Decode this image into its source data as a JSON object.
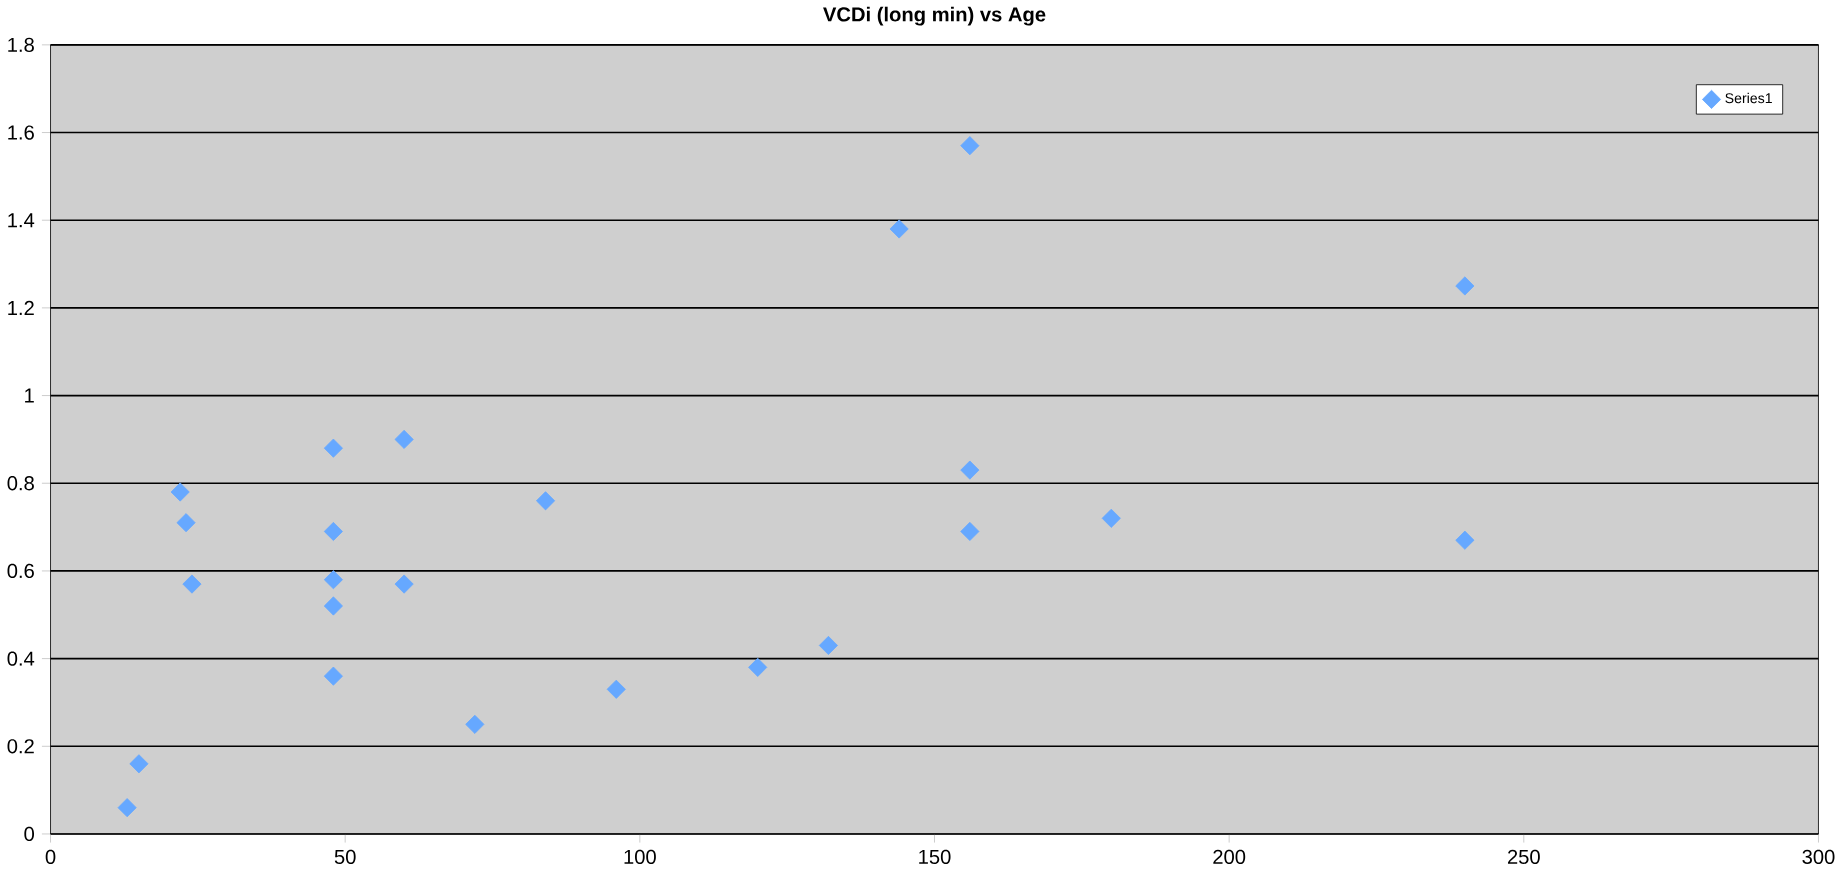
{
  "chart_data": {
    "type": "scatter",
    "title": "VCDi (long min) vs Age",
    "x": [
      13,
      15,
      22,
      23,
      24,
      48,
      48,
      48,
      48,
      48,
      60,
      60,
      72,
      84,
      96,
      120,
      132,
      144,
      156,
      156,
      156,
      180,
      240,
      240
    ],
    "series": [
      {
        "name": "Series1",
        "color": "#66a8ff",
        "values": [
          0.06,
          0.16,
          0.78,
          0.71,
          0.57,
          0.88,
          0.69,
          0.58,
          0.52,
          0.36,
          0.9,
          0.57,
          0.25,
          0.76,
          0.33,
          0.38,
          0.43,
          1.38,
          1.57,
          0.83,
          0.69,
          0.72,
          1.25,
          0.67
        ]
      }
    ],
    "xlim": [
      0,
      300
    ],
    "xticks": [
      0,
      50,
      100,
      150,
      200,
      250,
      300
    ],
    "ylim": [
      0,
      1.8
    ],
    "yticks": [
      0,
      0.2,
      0.4,
      0.6,
      0.8,
      1,
      1.2,
      1.4,
      1.6,
      1.8
    ],
    "grid": "y",
    "legend": "top right",
    "marker": "diamond"
  }
}
